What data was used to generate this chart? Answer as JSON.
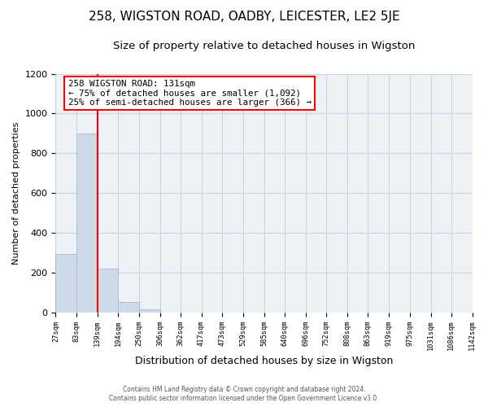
{
  "title": "258, WIGSTON ROAD, OADBY, LEICESTER, LE2 5JE",
  "subtitle": "Size of property relative to detached houses in Wigston",
  "xlabel": "Distribution of detached houses by size in Wigston",
  "ylabel": "Number of detached properties",
  "bin_edges": [
    27,
    83,
    139,
    194,
    250,
    306,
    362,
    417,
    473,
    529,
    585,
    640,
    696,
    752,
    808,
    863,
    919,
    975,
    1031,
    1086,
    1142
  ],
  "bin_labels": [
    "27sqm",
    "83sqm",
    "139sqm",
    "194sqm",
    "250sqm",
    "306sqm",
    "362sqm",
    "417sqm",
    "473sqm",
    "529sqm",
    "585sqm",
    "640sqm",
    "696sqm",
    "752sqm",
    "808sqm",
    "863sqm",
    "919sqm",
    "975sqm",
    "1031sqm",
    "1086sqm",
    "1142sqm"
  ],
  "bar_heights": [
    295,
    900,
    220,
    50,
    15,
    0,
    0,
    0,
    0,
    0,
    0,
    0,
    0,
    0,
    0,
    0,
    0,
    0,
    0,
    0
  ],
  "bar_color": "#ccdaea",
  "bar_edge_color": "#aabece",
  "vline_x": 139,
  "vline_color": "red",
  "ylim": [
    0,
    1200
  ],
  "annotation_title": "258 WIGSTON ROAD: 131sqm",
  "annotation_line1": "← 75% of detached houses are smaller (1,092)",
  "annotation_line2": "25% of semi-detached houses are larger (366) →",
  "annotation_box_color": "white",
  "annotation_box_edge_color": "red",
  "footer_line1": "Contains HM Land Registry data © Crown copyright and database right 2024.",
  "footer_line2": "Contains public sector information licensed under the Open Government Licence v3.0.",
  "bg_color": "white",
  "plot_bg_color": "#eef2f6",
  "grid_color": "#c8d4de",
  "title_fontsize": 11,
  "subtitle_fontsize": 9.5,
  "ylabel_fontsize": 8,
  "xlabel_fontsize": 9
}
